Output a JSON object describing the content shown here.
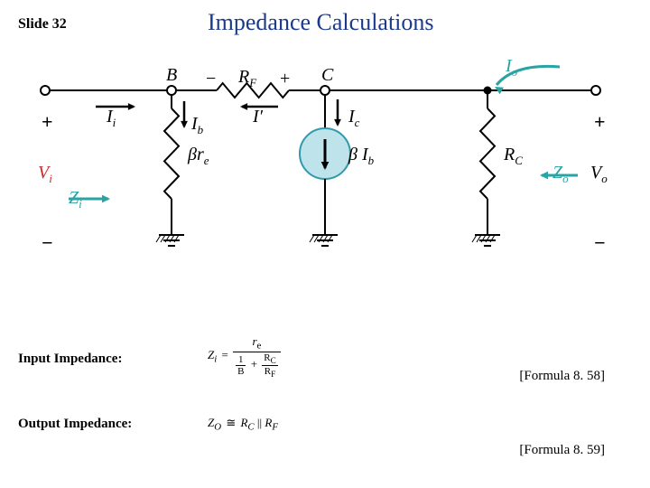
{
  "slide_number": "Slide 32",
  "title": "Impedance Calculations",
  "colors": {
    "title": "#1b3a8a",
    "black": "#000000",
    "teal": "#2aa3a3",
    "red": "#cc2b2b",
    "hiliteFill": "#bfe3ea",
    "hiliteStroke": "#309aac"
  },
  "nodes": {
    "B": "B",
    "C": "C"
  },
  "diagram_labels": {
    "Rf_minus": "−",
    "Rf": "R",
    "Rf_sub": "F",
    "Rf_plus": "+",
    "Vi_plus": "+",
    "Vi_minus": "−",
    "Vo_plus": "+",
    "Vo_minus": "−",
    "Ii": "I",
    "Ii_sub": "i",
    "Ib": "I",
    "Ib_sub": "b",
    "Ip": "I′",
    "Ic": "I",
    "Ic_sub": "c",
    "Io": "I",
    "Io_sub": "o",
    "Vi": "V",
    "Vi_sub": "i",
    "Vo": "V",
    "Vo_sub": "o",
    "Zi": "Z",
    "Zi_sub": "i",
    "Zo": "Z",
    "Zo_sub": "o",
    "bre_b": "β",
    "bre_r": "r",
    "bre_e": "e",
    "bIb_b": "β",
    "bIb_I": "I",
    "bIb_sub": "b",
    "Rc": "R",
    "Rc_sub": "C"
  },
  "sections": {
    "input": {
      "label": "Input Impedance:",
      "ref": "[Formula 8. 58]",
      "formula": {
        "lhs": "Z",
        "lhs_sub": "i",
        "eq": "=",
        "num_r": "r",
        "num_e": "e",
        "den_one": "1",
        "den_B": "B",
        "plus": "+",
        "rc": "R",
        "rc_sub": "C",
        "rf": "R",
        "rf_sub": "F"
      }
    },
    "output": {
      "label": "Output Impedance:",
      "ref": "[Formula 8. 59]",
      "formula": {
        "lhs": "Z",
        "lhs_sub": "O",
        "approx": "≅",
        "rc": "R",
        "rc_sub": "C",
        "par": "||",
        "rf": "R",
        "rf_sub": "F"
      }
    }
  },
  "geom": {
    "wireY": 40,
    "leftX": 10,
    "nodeB": 150,
    "nodeC": 320,
    "nodeMid": 500,
    "rightX": 620,
    "rfStart": 200,
    "rfEnd": 280,
    "groundY": 220,
    "resTop": 60,
    "resBot": 160
  }
}
